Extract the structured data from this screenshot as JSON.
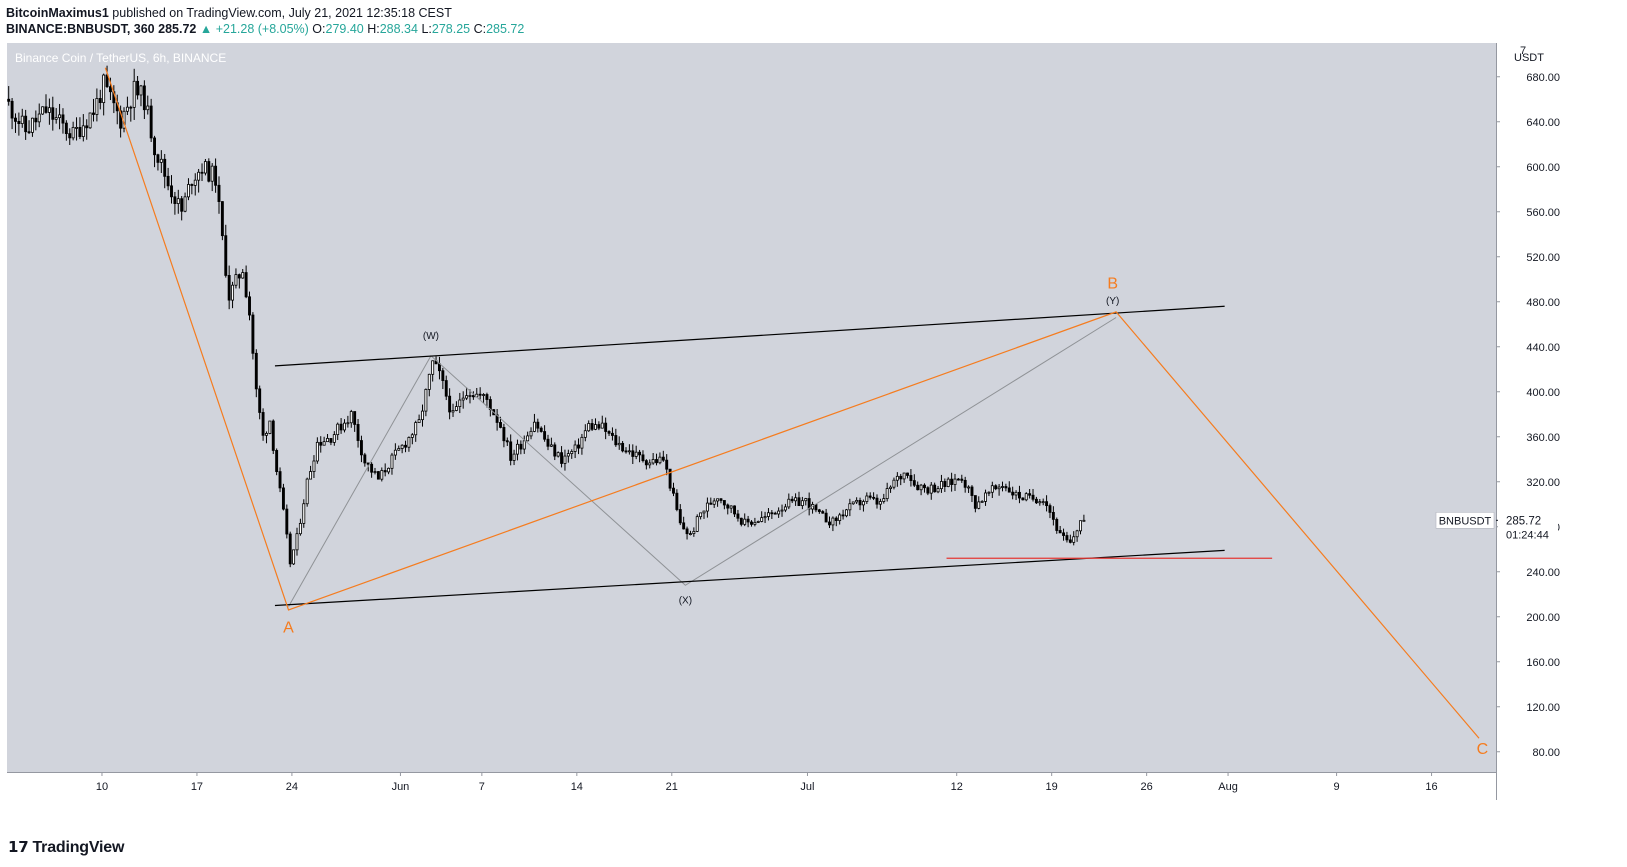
{
  "header": {
    "author": "BitcoinMaximus1",
    "published_text": "published on TradingView.com, July 21, 2021 12:35:18 CEST",
    "symbol": "BINANCE:BNBUSDT, 360",
    "last": "285.72",
    "change": "▲ +21.28 (+8.05%)",
    "o_label": "O:",
    "o": "279.40",
    "h_label": "H:",
    "h": "288.34",
    "l_label": "L:",
    "l": "278.25",
    "c_label": "C:",
    "c": "285.72"
  },
  "logo": {
    "text": "TradingView"
  },
  "colors": {
    "background": "#d1d4dc",
    "candle": "#000000",
    "wave_orange": "#f57c1f",
    "wave_grey": "#8f9296",
    "channel": "#000000",
    "support_red": "#e53935",
    "axis_text": "#131722"
  },
  "chart_data": {
    "type": "candlestick",
    "title": "Binance Coin / TetherUS, 6h, BINANCE",
    "currency": "USDT",
    "ylim": [
      62,
      710
    ],
    "y_ticks": [
      80,
      120,
      160,
      200,
      240,
      280,
      320,
      360,
      400,
      440,
      480,
      520,
      560,
      600,
      640,
      680
    ],
    "y_tick_labels": [
      "80.00",
      "120.00",
      "160.00",
      "200.00",
      "240.00",
      "280.00",
      "320.00",
      "360.00",
      "400.00",
      "440.00",
      "480.00",
      "520.00",
      "560.00",
      "600.00",
      "640.00",
      "680.00"
    ],
    "y_top_label": "7",
    "x_range": [
      "2021-05-03T00:00",
      "2021-08-20T18:00"
    ],
    "x_ticks": [
      {
        "date": "2021-05-10",
        "label": "10"
      },
      {
        "date": "2021-05-17",
        "label": "17"
      },
      {
        "date": "2021-05-24",
        "label": "24"
      },
      {
        "date": "2021-06-01",
        "label": "Jun"
      },
      {
        "date": "2021-06-07",
        "label": "7"
      },
      {
        "date": "2021-06-14",
        "label": "14"
      },
      {
        "date": "2021-06-21",
        "label": "21"
      },
      {
        "date": "2021-07-01",
        "label": "Jul"
      },
      {
        "date": "2021-07-12",
        "label": "12"
      },
      {
        "date": "2021-07-19",
        "label": "19"
      },
      {
        "date": "2021-07-26",
        "label": "26"
      },
      {
        "date": "2021-08-01",
        "label": "Aug"
      },
      {
        "date": "2021-08-09",
        "label": "9"
      },
      {
        "date": "2021-08-16",
        "label": "16"
      }
    ],
    "price_series": {
      "interval_hours": 6,
      "start": "2021-05-03T00:00",
      "end": "2021-07-21T06:00",
      "anchors": [
        {
          "date": "2021-05-03T00:00",
          "price": 660
        },
        {
          "date": "2021-05-04T12:00",
          "price": 632
        },
        {
          "date": "2021-05-06T00:00",
          "price": 650
        },
        {
          "date": "2021-05-08T00:00",
          "price": 628
        },
        {
          "date": "2021-05-09T12:00",
          "price": 650
        },
        {
          "date": "2021-05-10T06:00",
          "price": 672
        },
        {
          "date": "2021-05-11T12:00",
          "price": 642
        },
        {
          "date": "2021-05-12T12:00",
          "price": 668
        },
        {
          "date": "2021-05-13T06:00",
          "price": 660
        },
        {
          "date": "2021-05-14T00:00",
          "price": 618
        },
        {
          "date": "2021-05-15T00:00",
          "price": 585
        },
        {
          "date": "2021-05-16T00:00",
          "price": 560
        },
        {
          "date": "2021-05-16T18:00",
          "price": 590
        },
        {
          "date": "2021-05-17T12:00",
          "price": 600
        },
        {
          "date": "2021-05-18T12:00",
          "price": 590
        },
        {
          "date": "2021-05-19T00:00",
          "price": 535
        },
        {
          "date": "2021-05-19T12:00",
          "price": 485
        },
        {
          "date": "2021-05-20T12:00",
          "price": 510
        },
        {
          "date": "2021-05-21T00:00",
          "price": 470
        },
        {
          "date": "2021-05-21T12:00",
          "price": 400
        },
        {
          "date": "2021-05-22T00:00",
          "price": 360
        },
        {
          "date": "2021-05-22T12:00",
          "price": 375
        },
        {
          "date": "2021-05-23T00:00",
          "price": 330
        },
        {
          "date": "2021-05-23T12:00",
          "price": 292
        },
        {
          "date": "2021-05-24T00:00",
          "price": 248
        },
        {
          "date": "2021-05-24T12:00",
          "price": 270
        },
        {
          "date": "2021-05-25T06:00",
          "price": 320
        },
        {
          "date": "2021-05-26T00:00",
          "price": 355
        },
        {
          "date": "2021-05-27T00:00",
          "price": 360
        },
        {
          "date": "2021-05-28T12:00",
          "price": 380
        },
        {
          "date": "2021-05-29T12:00",
          "price": 338
        },
        {
          "date": "2021-05-30T12:00",
          "price": 322
        },
        {
          "date": "2021-05-31T12:00",
          "price": 340
        },
        {
          "date": "2021-06-01T12:00",
          "price": 355
        },
        {
          "date": "2021-06-02T12:00",
          "price": 372
        },
        {
          "date": "2021-06-03T12:00",
          "price": 425
        },
        {
          "date": "2021-06-04T00:00",
          "price": 415
        },
        {
          "date": "2021-06-05T00:00",
          "price": 378
        },
        {
          "date": "2021-06-06T00:00",
          "price": 402
        },
        {
          "date": "2021-06-07T12:00",
          "price": 393
        },
        {
          "date": "2021-06-08T12:00",
          "price": 370
        },
        {
          "date": "2021-06-09T06:00",
          "price": 342
        },
        {
          "date": "2021-06-10T06:00",
          "price": 358
        },
        {
          "date": "2021-06-11T00:00",
          "price": 375
        },
        {
          "date": "2021-06-12T00:00",
          "price": 352
        },
        {
          "date": "2021-06-13T00:00",
          "price": 340
        },
        {
          "date": "2021-06-14T00:00",
          "price": 348
        },
        {
          "date": "2021-06-15T00:00",
          "price": 370
        },
        {
          "date": "2021-06-16T00:00",
          "price": 368
        },
        {
          "date": "2021-06-17T00:00",
          "price": 355
        },
        {
          "date": "2021-06-18T12:00",
          "price": 343
        },
        {
          "date": "2021-06-19T12:00",
          "price": 338
        },
        {
          "date": "2021-06-20T12:00",
          "price": 340
        },
        {
          "date": "2021-06-21T00:00",
          "price": 318
        },
        {
          "date": "2021-06-21T18:00",
          "price": 282
        },
        {
          "date": "2021-06-22T12:00",
          "price": 272
        },
        {
          "date": "2021-06-23T06:00",
          "price": 292
        },
        {
          "date": "2021-06-24T12:00",
          "price": 308
        },
        {
          "date": "2021-06-25T12:00",
          "price": 296
        },
        {
          "date": "2021-06-26T12:00",
          "price": 283
        },
        {
          "date": "2021-06-28T00:00",
          "price": 288
        },
        {
          "date": "2021-06-29T12:00",
          "price": 300
        },
        {
          "date": "2021-07-01T00:00",
          "price": 303
        },
        {
          "date": "2021-07-02T00:00",
          "price": 290
        },
        {
          "date": "2021-07-03T00:00",
          "price": 284
        },
        {
          "date": "2021-07-04T00:00",
          "price": 295
        },
        {
          "date": "2021-07-05T12:00",
          "price": 305
        },
        {
          "date": "2021-07-06T12:00",
          "price": 300
        },
        {
          "date": "2021-07-07T12:00",
          "price": 320
        },
        {
          "date": "2021-07-08T12:00",
          "price": 330
        },
        {
          "date": "2021-07-09T00:00",
          "price": 318
        },
        {
          "date": "2021-07-10T00:00",
          "price": 314
        },
        {
          "date": "2021-07-11T12:00",
          "price": 318
        },
        {
          "date": "2021-07-12T12:00",
          "price": 325
        },
        {
          "date": "2021-07-13T12:00",
          "price": 300
        },
        {
          "date": "2021-07-14T12:00",
          "price": 310
        },
        {
          "date": "2021-07-15T12:00",
          "price": 318
        },
        {
          "date": "2021-07-16T12:00",
          "price": 308
        },
        {
          "date": "2021-07-17T12:00",
          "price": 305
        },
        {
          "date": "2021-07-18T12:00",
          "price": 306
        },
        {
          "date": "2021-07-19T00:00",
          "price": 294
        },
        {
          "date": "2021-07-19T18:00",
          "price": 272
        },
        {
          "date": "2021-07-20T12:00",
          "price": 264
        },
        {
          "date": "2021-07-21T06:00",
          "price": 285.72
        }
      ]
    },
    "last_price": {
      "symbol": "BNBUSDT",
      "price": "285.72",
      "countdown": "01:24:44"
    },
    "drawings": {
      "orange_wave": {
        "color": "#f57c1f",
        "points": [
          {
            "date": "2021-05-10T06:00",
            "price": 688
          },
          {
            "date": "2021-05-23T18:00",
            "price": 206
          },
          {
            "date": "2021-07-23T18:00",
            "price": 471
          },
          {
            "date": "2021-08-19T12:00",
            "price": 92
          }
        ]
      },
      "grey_wave": {
        "color": "#8f9296",
        "points": [
          {
            "date": "2021-05-23T18:00",
            "price": 209
          },
          {
            "date": "2021-06-03T06:00",
            "price": 432
          },
          {
            "date": "2021-06-22T00:00",
            "price": 228
          },
          {
            "date": "2021-07-23T18:00",
            "price": 466
          }
        ]
      },
      "channel_upper": {
        "color": "#000000",
        "points": [
          {
            "date": "2021-05-22T18:00",
            "price": 423
          },
          {
            "date": "2021-07-31T18:00",
            "price": 476
          }
        ]
      },
      "channel_lower": {
        "color": "#000000",
        "points": [
          {
            "date": "2021-05-22T18:00",
            "price": 210
          },
          {
            "date": "2021-07-31T18:00",
            "price": 259
          }
        ]
      },
      "support_line": {
        "color": "#e53935",
        "points": [
          {
            "date": "2021-07-11T06:00",
            "price": 252
          },
          {
            "date": "2021-08-04T06:00",
            "price": 252
          }
        ]
      }
    },
    "annotations": [
      {
        "text": "A",
        "date": "2021-05-23T18:00",
        "price": 186,
        "color": "#f57c1f",
        "size": "large"
      },
      {
        "text": "B",
        "date": "2021-07-23T12:00",
        "price": 492,
        "color": "#f57c1f",
        "size": "large"
      },
      {
        "text": "C",
        "date": "2021-08-19T18:00",
        "price": 78,
        "color": "#f57c1f",
        "size": "large"
      },
      {
        "text": "(W)",
        "date": "2021-06-03T06:00",
        "price": 447,
        "color": "#131722",
        "size": "small"
      },
      {
        "text": "(X)",
        "date": "2021-06-22T00:00",
        "price": 212,
        "color": "#131722",
        "size": "small"
      },
      {
        "text": "(Y)",
        "date": "2021-07-23T12:00",
        "price": 478,
        "color": "#131722",
        "size": "small"
      }
    ]
  }
}
